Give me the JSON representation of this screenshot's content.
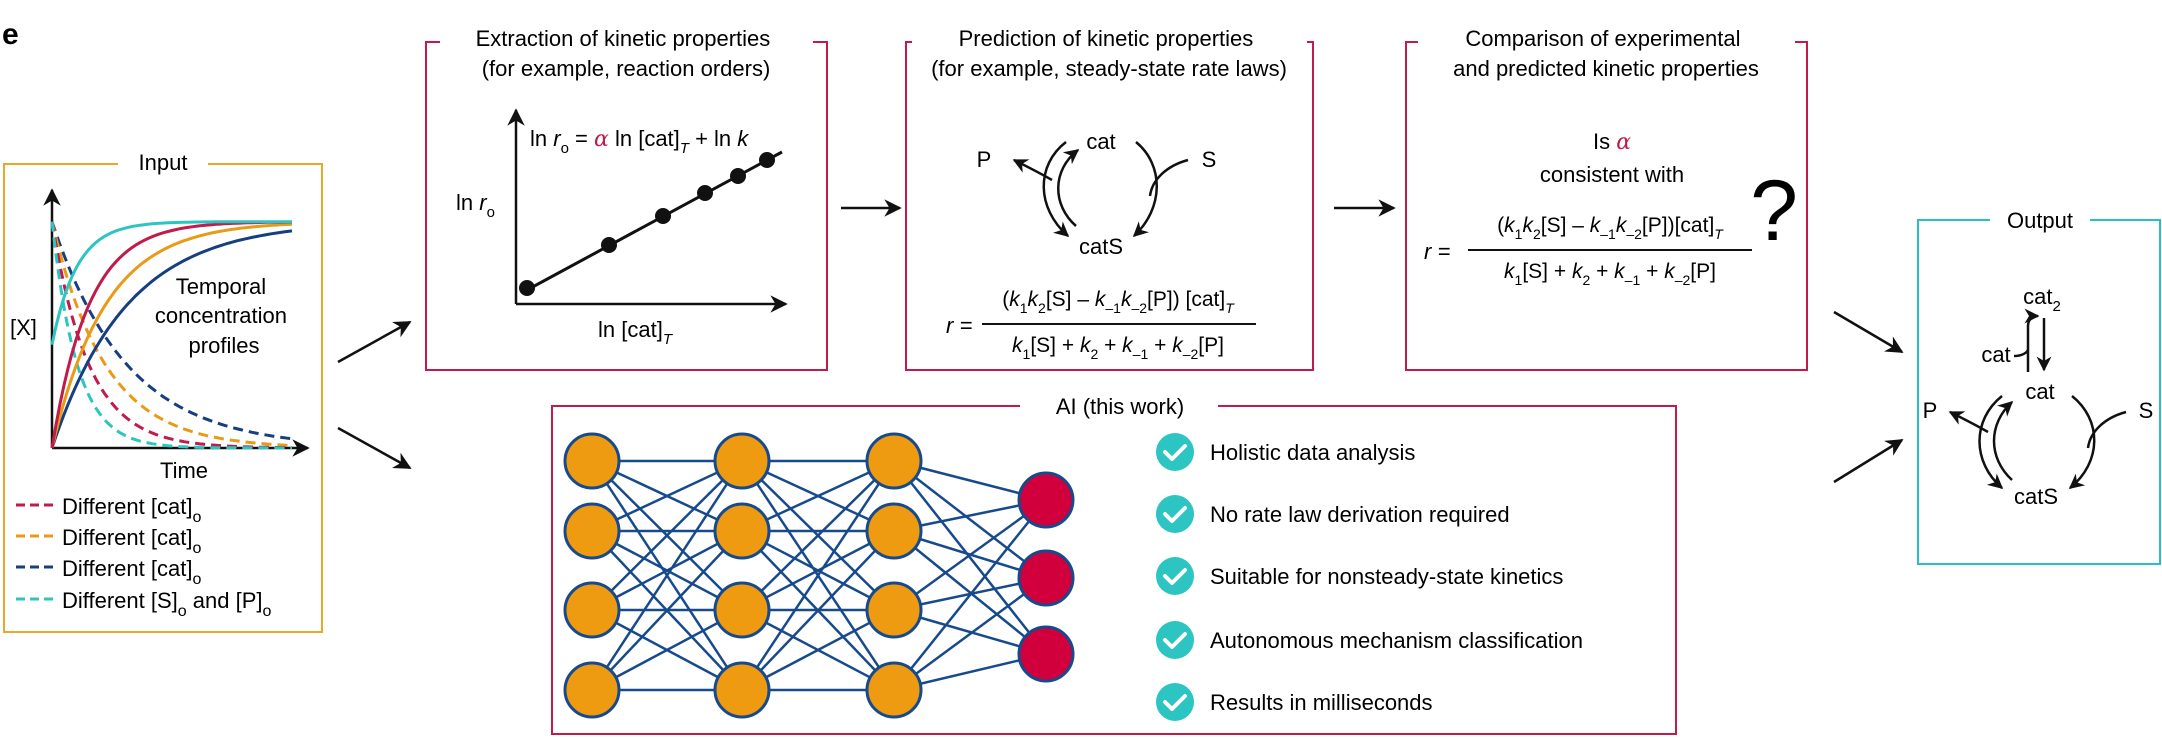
{
  "panel_label": "e",
  "colors": {
    "input_frame": "#E9A72B",
    "middle_frames": "#C01B4A",
    "output_frame": "#2ABFC0",
    "alpha": "#C01B4A",
    "series_red": "#C01B4A",
    "series_orange": "#E99A16",
    "series_blue": "#163F80",
    "series_cyan": "#2CC5C2",
    "nn_orange": "#EE9B12",
    "nn_red": "#D1003D",
    "nn_edge": "#174A8C",
    "check": "#2CC5C2"
  },
  "input": {
    "title": "Input",
    "y_label": "[X]",
    "x_label": "Time",
    "annotation": [
      "Temporal",
      "concentration",
      "profiles"
    ],
    "legend": [
      {
        "prefix": "Different [cat]",
        "sub": "o",
        "suffix": "",
        "sub2": "",
        "color_key": "series_red"
      },
      {
        "prefix": "Different [cat]",
        "sub": "o",
        "suffix": "",
        "sub2": "",
        "color_key": "series_orange"
      },
      {
        "prefix": "Different [cat]",
        "sub": "o",
        "suffix": "",
        "sub2": "",
        "color_key": "series_blue"
      },
      {
        "prefix": "Different [S]",
        "sub": "o",
        "suffix": " and [P]",
        "sub2": "o",
        "color_key": "series_cyan"
      }
    ]
  },
  "extraction": {
    "title": [
      "Extraction of kinetic properties",
      "(for example, reaction orders)"
    ],
    "eq_ln": "ln ",
    "eq_r": "r",
    "eq_o": "o",
    "eq_eq": " = ",
    "eq_alpha": "α",
    "eq_rest": " ln [cat]",
    "eq_T": "T",
    "eq_plus": " + ln ",
    "eq_k": "k",
    "y_label_ln": "ln ",
    "y_label_r": "r",
    "y_label_o": "o",
    "x_label": "ln [cat]",
    "x_label_sub": "T"
  },
  "prediction": {
    "title": [
      "Prediction of kinetic properties",
      "(for example, steady-state rate laws)"
    ],
    "cycle": {
      "top": "cat",
      "bottom": "catS",
      "left": "P",
      "right": "S"
    },
    "rate_r": "r =",
    "num": [
      {
        "t": "(",
        "s": ""
      },
      {
        "t": "k",
        "i": true,
        "s": "1"
      },
      {
        "t": "k",
        "i": true,
        "s": "2"
      },
      {
        "t": "[S] – ",
        "s": ""
      },
      {
        "t": "k",
        "i": true,
        "s": "–1"
      },
      {
        "t": "k",
        "i": true,
        "s": "–2"
      },
      {
        "t": "[P]) [cat]",
        "s": ""
      },
      {
        "t": "",
        "s": "T",
        "si": true
      }
    ],
    "den": [
      {
        "t": "k",
        "i": true,
        "s": "1"
      },
      {
        "t": "[S] + ",
        "s": ""
      },
      {
        "t": "k",
        "i": true,
        "s": "2"
      },
      {
        "t": " + ",
        "s": ""
      },
      {
        "t": "k",
        "i": true,
        "s": "–1"
      },
      {
        "t": " + ",
        "s": ""
      },
      {
        "t": "k",
        "i": true,
        "s": "–2"
      },
      {
        "t": "[P]",
        "s": ""
      }
    ]
  },
  "comparison": {
    "title": [
      "Comparison of experimental",
      "and predicted kinetic properties"
    ],
    "is": "Is ",
    "alpha": "α",
    "consistent": "consistent with",
    "question": "?",
    "rate_r": "r =",
    "num": [
      {
        "t": "(",
        "s": ""
      },
      {
        "t": "k",
        "i": true,
        "s": "1"
      },
      {
        "t": "k",
        "i": true,
        "s": "2"
      },
      {
        "t": "[S] – ",
        "s": ""
      },
      {
        "t": "k",
        "i": true,
        "s": "–1"
      },
      {
        "t": "k",
        "i": true,
        "s": "–2"
      },
      {
        "t": "[P])[cat]",
        "s": ""
      },
      {
        "t": "",
        "s": "T",
        "si": true
      }
    ],
    "den": [
      {
        "t": "k",
        "i": true,
        "s": "1"
      },
      {
        "t": "[S] + ",
        "s": ""
      },
      {
        "t": "k",
        "i": true,
        "s": "2"
      },
      {
        "t": " + ",
        "s": ""
      },
      {
        "t": "k",
        "i": true,
        "s": "–1"
      },
      {
        "t": " + ",
        "s": ""
      },
      {
        "t": "k",
        "i": true,
        "s": "–2"
      },
      {
        "t": "[P]",
        "s": ""
      }
    ]
  },
  "ai": {
    "title": "AI (this work)",
    "network_layers": [
      4,
      4,
      4,
      3
    ],
    "features": [
      "Holistic data analysis",
      "No rate law derivation required",
      "Suitable for nonsteady-state kinetics",
      "Autonomous mechanism classification",
      "Results in milliseconds"
    ]
  },
  "output": {
    "title": "Output",
    "cat2": "cat",
    "cat2_sub": "2",
    "cat_left": "cat",
    "cat_top": "cat",
    "cat_bottom": "catS",
    "left": "P",
    "right": "S"
  }
}
